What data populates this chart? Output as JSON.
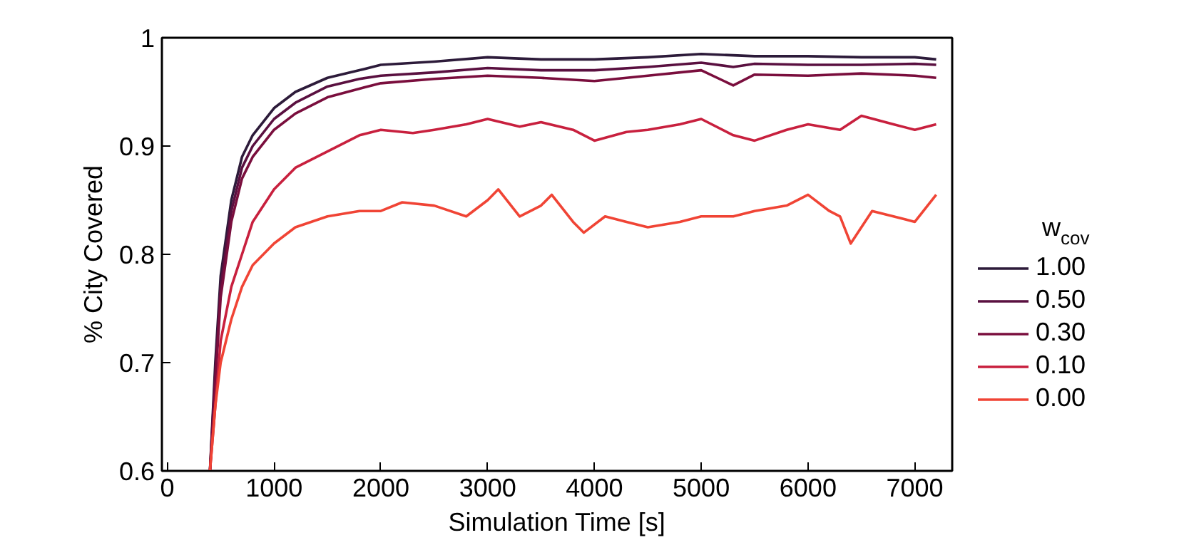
{
  "chart_data": {
    "type": "line",
    "xlabel": "Simulation Time [s]",
    "ylabel": "% City Covered",
    "legend_title": "w$_{cov}$",
    "legend": "right",
    "grid": false,
    "line_style": "solid",
    "marker": "none",
    "xlim": [
      -50,
      7350
    ],
    "ylim": [
      0.6,
      1
    ],
    "xticks": [
      0,
      1000,
      2000,
      3000,
      4000,
      5000,
      6000,
      7000
    ],
    "yticks": [
      0.6,
      0.7,
      0.8,
      0.9,
      {
        "value": 1,
        "label": "1"
      }
    ],
    "series": [
      {
        "name": "1.00",
        "color": "#2d1b3a",
        "x": [
          400,
          450,
          500,
          600,
          700,
          800,
          1000,
          1200,
          1500,
          1800,
          2000,
          2500,
          3000,
          3500,
          4000,
          4500,
          5000,
          5500,
          6000,
          6500,
          7000,
          7200
        ],
        "values": [
          0.6,
          0.7,
          0.78,
          0.85,
          0.89,
          0.91,
          0.935,
          0.95,
          0.963,
          0.97,
          0.975,
          0.978,
          0.982,
          0.98,
          0.98,
          0.982,
          0.985,
          0.983,
          0.983,
          0.982,
          0.982,
          0.98
        ]
      },
      {
        "name": "0.50",
        "color": "#5a1040",
        "x": [
          400,
          450,
          500,
          600,
          700,
          800,
          1000,
          1200,
          1500,
          1800,
          2000,
          2500,
          3000,
          3500,
          4000,
          4500,
          5000,
          5300,
          5500,
          6000,
          6500,
          7000,
          7200
        ],
        "values": [
          0.6,
          0.69,
          0.77,
          0.84,
          0.88,
          0.9,
          0.925,
          0.94,
          0.955,
          0.962,
          0.965,
          0.968,
          0.972,
          0.97,
          0.97,
          0.973,
          0.977,
          0.973,
          0.976,
          0.975,
          0.975,
          0.976,
          0.975
        ]
      },
      {
        "name": "0.30",
        "color": "#7a0e3d",
        "x": [
          400,
          450,
          500,
          600,
          700,
          800,
          1000,
          1200,
          1500,
          1800,
          2000,
          2500,
          3000,
          3500,
          4000,
          4500,
          5000,
          5300,
          5500,
          6000,
          6500,
          7000,
          7200
        ],
        "values": [
          0.6,
          0.68,
          0.76,
          0.83,
          0.87,
          0.89,
          0.915,
          0.93,
          0.945,
          0.953,
          0.958,
          0.962,
          0.965,
          0.963,
          0.96,
          0.965,
          0.97,
          0.956,
          0.966,
          0.965,
          0.967,
          0.965,
          0.963
        ]
      },
      {
        "name": "0.10",
        "color": "#c8203e",
        "x": [
          400,
          450,
          500,
          600,
          700,
          800,
          1000,
          1200,
          1500,
          1800,
          2000,
          2300,
          2500,
          2800,
          3000,
          3300,
          3500,
          3800,
          4000,
          4300,
          4500,
          4800,
          5000,
          5300,
          5500,
          5800,
          6000,
          6300,
          6500,
          6800,
          7000,
          7200
        ],
        "values": [
          0.6,
          0.66,
          0.72,
          0.77,
          0.8,
          0.83,
          0.86,
          0.88,
          0.895,
          0.91,
          0.915,
          0.912,
          0.915,
          0.92,
          0.925,
          0.918,
          0.922,
          0.915,
          0.905,
          0.913,
          0.915,
          0.92,
          0.925,
          0.91,
          0.905,
          0.915,
          0.92,
          0.915,
          0.928,
          0.92,
          0.915,
          0.92
        ]
      },
      {
        "name": "0.00",
        "color": "#f04435",
        "x": [
          400,
          450,
          500,
          600,
          700,
          800,
          1000,
          1200,
          1500,
          1800,
          2000,
          2200,
          2500,
          2800,
          3000,
          3100,
          3300,
          3500,
          3600,
          3800,
          3900,
          4100,
          4300,
          4500,
          4800,
          5000,
          5300,
          5500,
          5800,
          6000,
          6200,
          6300,
          6400,
          6600,
          6800,
          7000,
          7200
        ],
        "values": [
          0.6,
          0.66,
          0.7,
          0.74,
          0.77,
          0.79,
          0.81,
          0.825,
          0.835,
          0.84,
          0.84,
          0.848,
          0.845,
          0.835,
          0.85,
          0.86,
          0.835,
          0.845,
          0.855,
          0.83,
          0.82,
          0.835,
          0.83,
          0.825,
          0.83,
          0.835,
          0.835,
          0.84,
          0.845,
          0.855,
          0.84,
          0.835,
          0.81,
          0.84,
          0.835,
          0.83,
          0.855
        ]
      }
    ]
  }
}
